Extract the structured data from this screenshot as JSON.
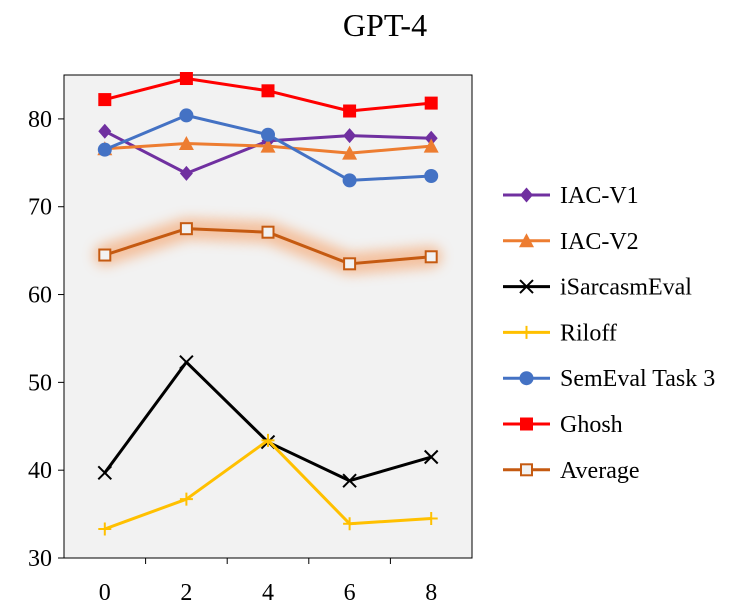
{
  "chart_data": {
    "type": "line",
    "title": "GPT-4",
    "xlabel": "",
    "ylabel": "",
    "x": [
      0,
      2,
      4,
      6,
      8
    ],
    "xlim": [
      -1,
      9
    ],
    "ylim": [
      30,
      85
    ],
    "yticks": [
      30,
      40,
      50,
      60,
      70,
      80
    ],
    "xticks": [
      0,
      2,
      4,
      6,
      8
    ],
    "grid": false,
    "legend_position": "right",
    "series": [
      {
        "name": "IAC-V1",
        "values": [
          78.6,
          73.8,
          77.5,
          78.1,
          77.8
        ],
        "color": "#7030A0",
        "marker": "diamond"
      },
      {
        "name": "IAC-V2",
        "values": [
          76.6,
          77.2,
          76.9,
          76.1,
          76.9
        ],
        "color": "#ED7D31",
        "marker": "triangle"
      },
      {
        "name": "iSarcasmEval",
        "values": [
          39.7,
          52.3,
          43.2,
          38.8,
          41.5
        ],
        "color": "#000000",
        "marker": "x"
      },
      {
        "name": "Riloff",
        "values": [
          33.3,
          36.7,
          43.4,
          33.9,
          34.5
        ],
        "color": "#FFC000",
        "marker": "plus"
      },
      {
        "name": "SemEval Task 3",
        "values": [
          76.5,
          80.4,
          78.2,
          73.0,
          73.5
        ],
        "color": "#4472C4",
        "marker": "circle"
      },
      {
        "name": "Ghosh",
        "values": [
          82.2,
          84.6,
          83.2,
          80.9,
          81.8
        ],
        "color": "#FF0000",
        "marker": "square"
      },
      {
        "name": "Average",
        "values": [
          64.5,
          67.5,
          67.1,
          63.5,
          64.3
        ],
        "color": "#C55A11",
        "marker": "open-square",
        "highlighted": true
      }
    ]
  }
}
